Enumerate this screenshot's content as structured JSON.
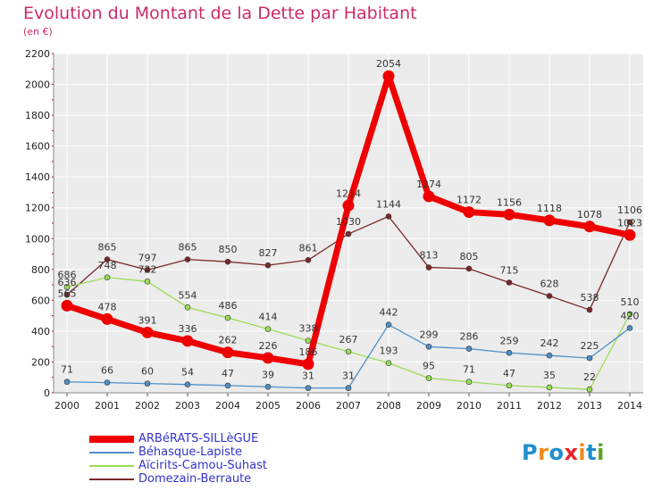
{
  "header": {
    "title": "Evolution du Montant de la Dette par Habitant",
    "subtitle": "(en €)"
  },
  "logo": {
    "text": "Proxiti",
    "colors": [
      "#1f8fd0",
      "#f08a1c",
      "#1f8fd0",
      "#e5262e",
      "#f08a1c",
      "#1f8fd0",
      "#5aa51e"
    ]
  },
  "chart_data": {
    "type": "line",
    "x": [
      "2000",
      "2001",
      "2002",
      "2003",
      "2004",
      "2005",
      "2006",
      "2007",
      "2008",
      "2009",
      "2010",
      "2011",
      "2012",
      "2013",
      "2014"
    ],
    "ylim": [
      0,
      2200
    ],
    "yticks": [
      0,
      200,
      400,
      600,
      800,
      1000,
      1200,
      1400,
      1600,
      1800,
      2000,
      2200
    ],
    "grid": true,
    "legend_position": "bottom-left",
    "series": [
      {
        "name": "ARBéRATS-SILLèGUE",
        "color": "#ee0000",
        "values": [
          565,
          478,
          391,
          336,
          262,
          226,
          186,
          1214,
          2054,
          1274,
          1172,
          1156,
          1118,
          1078,
          1023
        ],
        "labels": [
          "565",
          "478",
          "391",
          "336",
          "262",
          "226",
          "186",
          "1214",
          "2054",
          "1274",
          "1172",
          "1156",
          "1118",
          "1078",
          "1023"
        ]
      },
      {
        "name": "Béhasque-Lapiste",
        "color": "#4f8fc7",
        "values": [
          71,
          66,
          60,
          54,
          47,
          39,
          31,
          31,
          442,
          299,
          286,
          259,
          242,
          225,
          420
        ],
        "labels": [
          "71",
          "66",
          "60",
          "54",
          "47",
          "39",
          "31",
          "31",
          "442",
          "299",
          "286",
          "259",
          "242",
          "225",
          "420"
        ]
      },
      {
        "name": "Aïcirits-Camou-Suhast",
        "color": "#99dd55",
        "values": [
          686,
          748,
          722,
          554,
          486,
          414,
          338,
          267,
          193,
          95,
          71,
          47,
          35,
          22,
          510
        ],
        "labels": [
          "686",
          "748",
          "722",
          "554",
          "486",
          "414",
          "338",
          "267",
          "193",
          "95",
          "71",
          "47",
          "35",
          "22",
          "510"
        ]
      },
      {
        "name": "Domezain-Berraute",
        "color": "#7a2a2a",
        "values": [
          636,
          865,
          797,
          865,
          850,
          827,
          861,
          1030,
          1144,
          813,
          805,
          715,
          628,
          538,
          1106
        ],
        "labels": [
          "636",
          "865",
          "797",
          "865",
          "850",
          "827",
          "861",
          "1030",
          "1144",
          "813",
          "805",
          "715",
          "628",
          "538",
          "1106"
        ]
      }
    ]
  }
}
